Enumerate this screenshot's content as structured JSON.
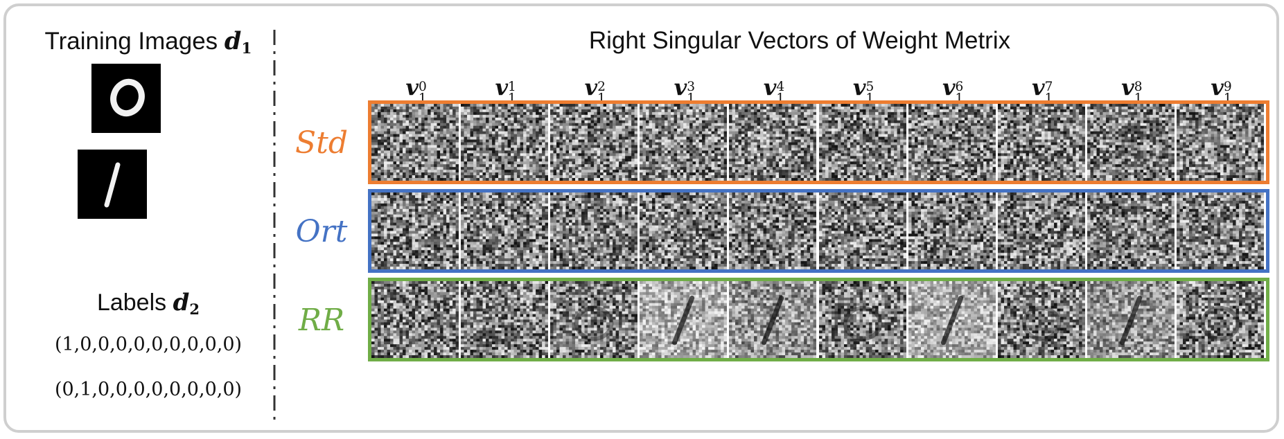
{
  "left": {
    "title_text": "Training Images ",
    "title_var": "d",
    "title_sub": "1",
    "images": [
      {
        "name": "digit-zero-image",
        "digit": "0"
      },
      {
        "name": "digit-one-image",
        "digit": "1"
      }
    ],
    "labels_text": "Labels ",
    "labels_var": "d",
    "labels_sub": "2",
    "onehot": [
      "(1,0,0,0,0,0,0,0,0,0)",
      "(0,1,0,0,0,0,0,0,0,0)"
    ]
  },
  "right": {
    "title": "Right Singular Vectors of Weight Metrix",
    "vector_symbol": "v",
    "vector_sub": "1",
    "columns": [
      "0",
      "1",
      "2",
      "3",
      "4",
      "5",
      "6",
      "7",
      "8",
      "9"
    ],
    "rows": [
      {
        "label": "Std",
        "color": "#ED7D31"
      },
      {
        "label": "Ort",
        "color": "#4472C4"
      },
      {
        "label": "RR",
        "color": "#70AD47"
      }
    ]
  }
}
